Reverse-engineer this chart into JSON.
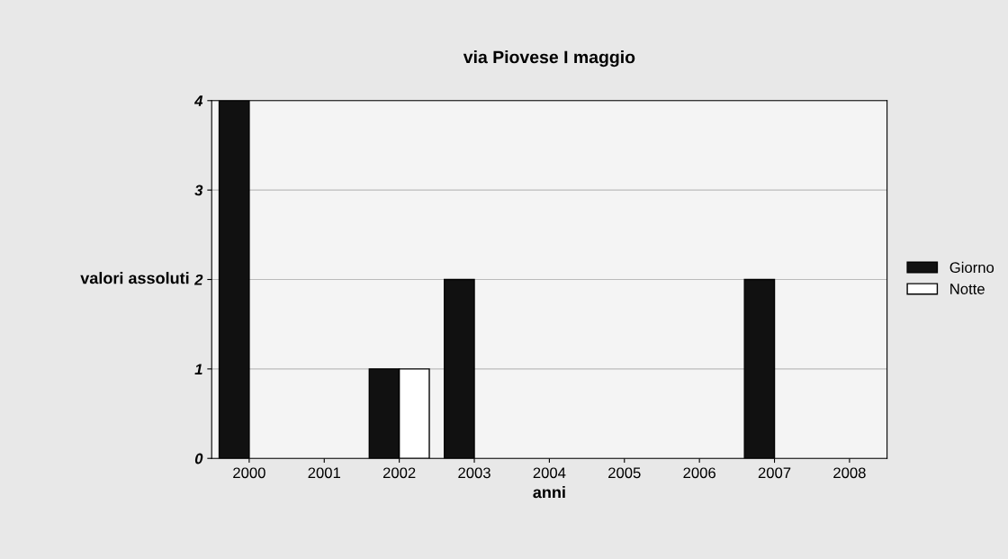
{
  "chart_data": {
    "type": "bar",
    "title": "via Piovese I maggio",
    "xlabel": "anni",
    "ylabel": "valori assoluti",
    "categories": [
      "2000",
      "2001",
      "2002",
      "2003",
      "2004",
      "2005",
      "2006",
      "2007",
      "2008"
    ],
    "series": [
      {
        "name": "Giorno",
        "color": "#111111",
        "values": [
          4,
          0,
          1,
          2,
          0,
          0,
          0,
          2,
          0
        ]
      },
      {
        "name": "Notte",
        "color": "#ffffff",
        "values": [
          0,
          0,
          1,
          0,
          0,
          0,
          0,
          0,
          0
        ]
      }
    ],
    "ylim": [
      0,
      4
    ],
    "yticks": [
      0,
      1,
      2,
      3,
      4
    ],
    "grid": "y",
    "legend": "right"
  }
}
